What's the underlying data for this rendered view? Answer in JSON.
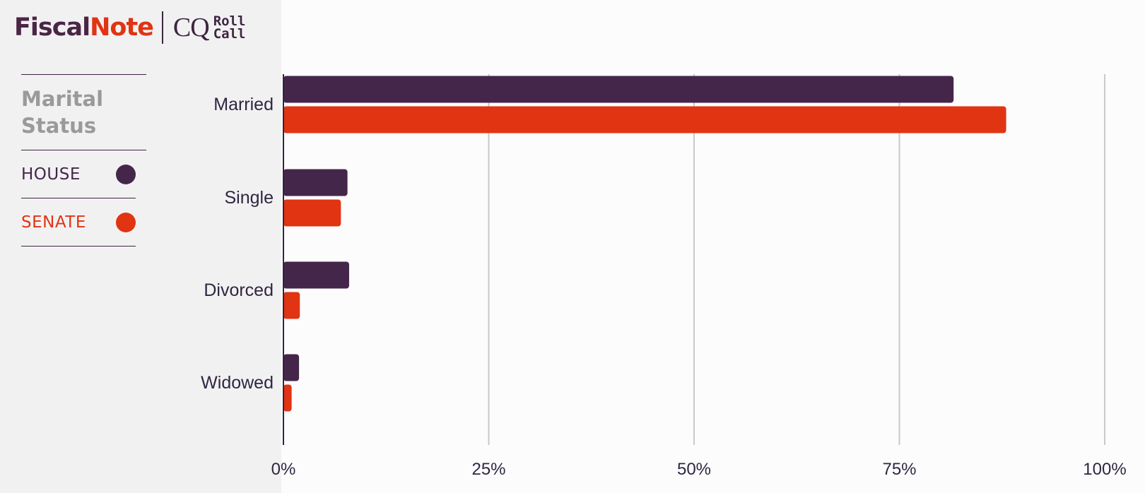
{
  "brand": {
    "fiscal": "Fiscal",
    "note": "Note",
    "cq": "CQ",
    "roll": "Roll",
    "call": "Call"
  },
  "legend": {
    "title_line1": "Marital",
    "title_line2": "Status",
    "items": [
      {
        "label": "HOUSE",
        "color": "#45264b"
      },
      {
        "label": "SENATE",
        "color": "#e03413"
      }
    ]
  },
  "colors": {
    "house": "#45264b",
    "senate": "#e03413",
    "grid": "#c9c9c9",
    "axis": "#2f2640",
    "title_gray": "#9a9a9a"
  },
  "chart_data": {
    "type": "bar",
    "orientation": "horizontal",
    "categories": [
      "Married",
      "Single",
      "Divorced",
      "Widowed"
    ],
    "series": [
      {
        "name": "HOUSE",
        "values": [
          81.6,
          7.8,
          8.0,
          1.9
        ]
      },
      {
        "name": "SENATE",
        "values": [
          88.0,
          7.0,
          2.0,
          1.0
        ]
      }
    ],
    "x_ticks": [
      "0%",
      "25%",
      "50%",
      "75%",
      "100%"
    ],
    "xlim": [
      0,
      100
    ],
    "grid": true,
    "legend_position": "left"
  }
}
